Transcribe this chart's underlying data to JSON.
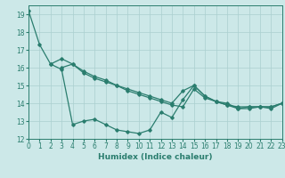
{
  "line1_x": [
    0,
    1,
    2,
    3,
    4,
    5,
    6,
    7,
    8,
    9,
    10,
    11,
    12,
    13,
    14,
    15,
    16,
    17,
    18,
    19,
    20,
    21,
    22,
    23
  ],
  "line1_y": [
    19.2,
    17.3,
    16.2,
    16.5,
    16.2,
    15.8,
    15.5,
    15.3,
    15.0,
    14.8,
    14.6,
    14.4,
    14.2,
    14.0,
    14.7,
    15.0,
    14.4,
    14.1,
    13.9,
    13.8,
    13.8,
    13.8,
    13.8,
    14.0
  ],
  "line2_x": [
    2,
    3,
    4,
    5,
    6,
    7,
    8,
    9,
    10,
    11,
    12,
    13,
    14,
    15,
    16,
    17,
    18,
    19,
    20,
    21,
    22,
    23
  ],
  "line2_y": [
    16.2,
    15.9,
    12.8,
    13.0,
    13.1,
    12.8,
    12.5,
    12.4,
    12.3,
    12.5,
    13.5,
    13.2,
    14.2,
    15.0,
    14.4,
    14.1,
    14.0,
    13.7,
    13.8,
    13.8,
    13.8,
    14.0
  ],
  "line3_x": [
    3,
    4,
    5,
    6,
    7,
    8,
    9,
    10,
    11,
    12,
    13,
    14,
    15,
    16,
    17,
    18,
    19,
    20,
    21,
    22,
    23
  ],
  "line3_y": [
    16.0,
    16.2,
    15.7,
    15.4,
    15.2,
    15.0,
    14.7,
    14.5,
    14.3,
    14.1,
    13.9,
    13.8,
    14.8,
    14.3,
    14.1,
    13.9,
    13.7,
    13.7,
    13.8,
    13.7,
    14.0
  ],
  "color": "#2a7d6e",
  "bg_color": "#cce8e8",
  "grid_color": "#aacfcf",
  "xlabel": "Humidex (Indice chaleur)",
  "xlim": [
    0,
    23
  ],
  "ylim": [
    12,
    19.5
  ],
  "yticks": [
    12,
    13,
    14,
    15,
    16,
    17,
    18,
    19
  ],
  "xticks": [
    0,
    1,
    2,
    3,
    4,
    5,
    6,
    7,
    8,
    9,
    10,
    11,
    12,
    13,
    14,
    15,
    16,
    17,
    18,
    19,
    20,
    21,
    22,
    23
  ]
}
